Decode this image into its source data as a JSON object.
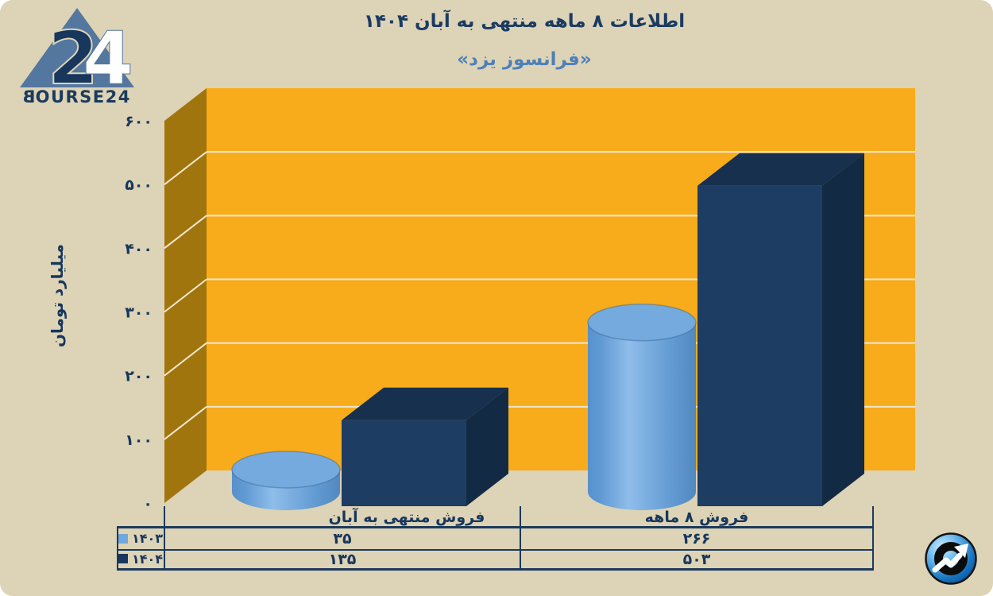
{
  "header": {
    "logo": {
      "numeral": "24",
      "brand_first_letter": "B",
      "brand_rest": "OURSE24"
    },
    "title": "اطلاعات ۸ ماهه منتهی به آبان ۱۴۰۴",
    "subtitle": "«فرانسوز یزد»"
  },
  "chart_data": {
    "type": "bar",
    "style": "3d-grouped-with-data-table",
    "title": "اطلاعات ۸ ماهه منتهی به آبان ۱۴۰۴",
    "subtitle": "«فرانسوز یزد»",
    "ylabel": "میلیارد تومان",
    "ylim": [
      0,
      600
    ],
    "ytick_step": 100,
    "ytick_labels_fa": [
      "۰",
      "۱۰۰",
      "۲۰۰",
      "۳۰۰",
      "۴۰۰",
      "۵۰۰",
      "۶۰۰"
    ],
    "grid": true,
    "categories": [
      "فروش منتهی به آبان",
      "فروش ۸  ماهه"
    ],
    "series": [
      {
        "name": "۱۴۰۳",
        "shape": "cylinder",
        "color": "#6FA8DC",
        "values": [
          35,
          266
        ],
        "values_fa": [
          "۳۵",
          "۲۶۶"
        ]
      },
      {
        "name": "۱۴۰۴",
        "shape": "box",
        "color": "#1D3C62",
        "values": [
          135,
          503
        ],
        "values_fa": [
          "۱۳۵",
          "۵۰۳"
        ]
      }
    ],
    "legend_position": "table-left",
    "wall_back_color": "#F8AC1C",
    "wall_side_color": "#A1750D",
    "gridline_color": "#EFE7CF"
  },
  "table": {
    "legend_rows": [
      {
        "year": "۱۴۰۳",
        "swatch_color": "#6FA8DC"
      },
      {
        "year": "۱۴۰۴",
        "swatch_color": "#17375E"
      }
    ]
  },
  "footer": {
    "watermark_icon": "bourse24-trend-arrow-icon"
  },
  "colors": {
    "page_background": "#DDD3B6",
    "title_text": "#1B3B63",
    "subtitle_text": "#4E80B7",
    "body_text": "#17375C",
    "table_border": "#1B3A5C",
    "logo_triangle": "#54779F"
  }
}
